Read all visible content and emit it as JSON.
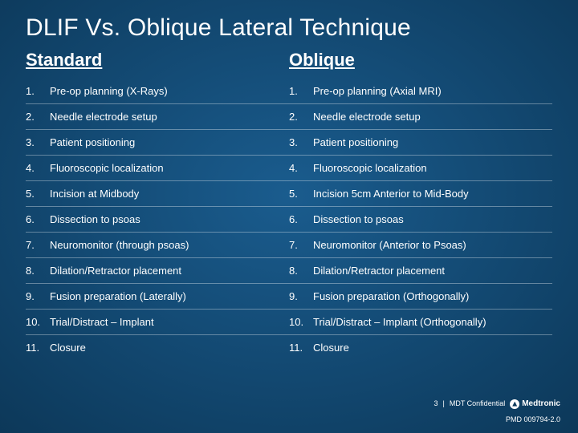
{
  "title": "DLIF Vs. Oblique Lateral Technique",
  "left": {
    "header": "Standard",
    "items": [
      "Pre-op planning (X-Rays)",
      "Needle electrode setup",
      "Patient positioning",
      "Fluoroscopic localization",
      "Incision at Midbody",
      "Dissection to psoas",
      "Neuromonitor (through psoas)",
      "Dilation/Retractor placement",
      "Fusion preparation (Laterally)",
      "Trial/Distract – Implant",
      "Closure"
    ]
  },
  "right": {
    "header": "Oblique",
    "items": [
      "Pre-op planning (Axial MRI)",
      "Needle electrode setup",
      "Patient positioning",
      "Fluoroscopic localization",
      "Incision 5cm Anterior to Mid-Body",
      "Dissection to psoas",
      "Neuromonitor (Anterior to Psoas)",
      "Dilation/Retractor placement",
      "Fusion preparation (Orthogonally)",
      "Trial/Distract – Implant  (Orthogonally)",
      "Closure"
    ]
  },
  "footer": {
    "page": "3",
    "sep": "|",
    "confidential": "MDT Confidential",
    "brand": "Medtronic",
    "pmd": "PMD 009794-2.0"
  },
  "style": {
    "bg_outer": "#052035",
    "bg_inner": "#1a5c8e",
    "text_color": "#ffffff",
    "row_border": "rgba(255,255,255,0.35)",
    "title_fontsize": 30,
    "header_fontsize": 22,
    "body_fontsize": 13,
    "footer_fontsize": 9
  }
}
